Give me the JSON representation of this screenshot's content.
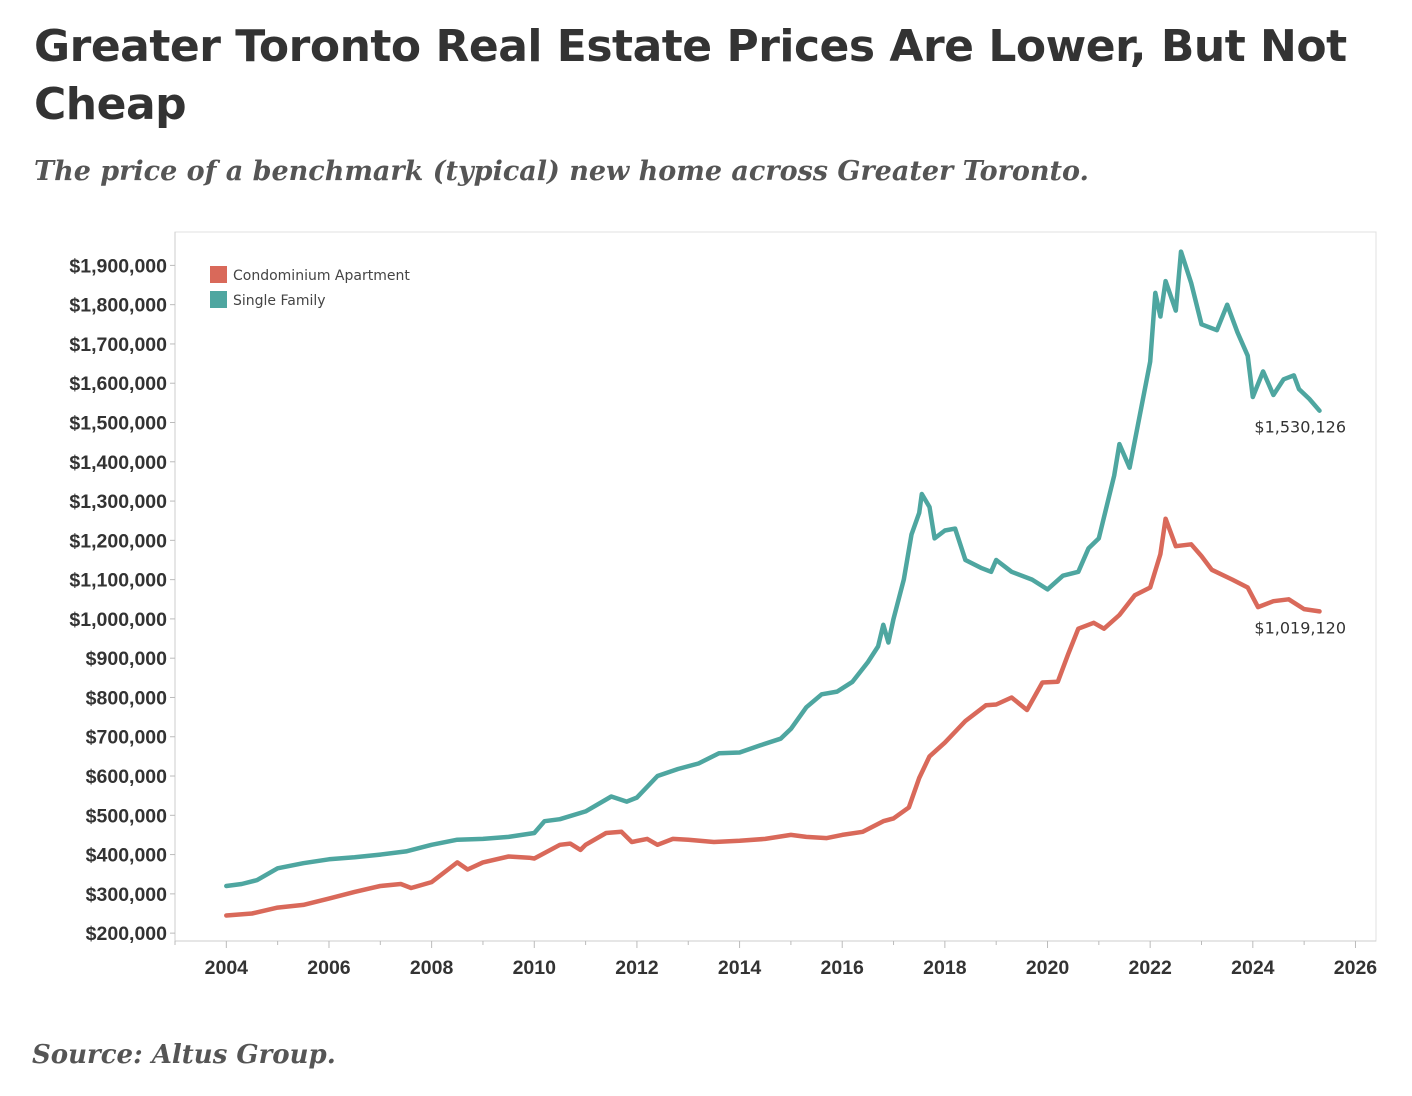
{
  "header": {
    "title": "Greater Toronto Real Estate Prices Are Lower, But Not Cheap",
    "subtitle": "The price of a benchmark (typical) new home across Greater Toronto.",
    "source": "Source: Altus Group."
  },
  "colors": {
    "condo": "#d9695a",
    "single_family": "#4ea6a0",
    "axis": "#cccccc",
    "frame": "#e0e0e0"
  },
  "chart_data": {
    "type": "line",
    "title": "Greater Toronto Real Estate Prices Are Lower, But Not Cheap",
    "subtitle": "The price of a benchmark (typical) new home across Greater Toronto.",
    "xlabel": "",
    "ylabel": "",
    "xlim": [
      2003,
      2026.4
    ],
    "ylim": [
      180000,
      1985000
    ],
    "x_ticks": [
      2004,
      2006,
      2008,
      2010,
      2012,
      2014,
      2016,
      2018,
      2020,
      2022,
      2024,
      2026
    ],
    "y_ticks": [
      200000,
      300000,
      400000,
      500000,
      600000,
      700000,
      800000,
      900000,
      1000000,
      1100000,
      1200000,
      1300000,
      1400000,
      1500000,
      1600000,
      1700000,
      1800000,
      1900000
    ],
    "y_tick_labels": [
      "$200,000",
      "$300,000",
      "$400,000",
      "$500,000",
      "$600,000",
      "$700,000",
      "$800,000",
      "$900,000",
      "$1,000,000",
      "$1,100,000",
      "$1,200,000",
      "$1,300,000",
      "$1,400,000",
      "$1,500,000",
      "$1,600,000",
      "$1,700,000",
      "$1,800,000",
      "$1,900,000"
    ],
    "grid": false,
    "legend_position": "top-left",
    "series": [
      {
        "name": "Condominium Apartment",
        "color": "#d9695a",
        "end_label": "$1,019,120",
        "points": [
          [
            2004.0,
            245000
          ],
          [
            2004.5,
            250000
          ],
          [
            2005.0,
            265000
          ],
          [
            2005.5,
            272000
          ],
          [
            2006.0,
            288000
          ],
          [
            2006.5,
            305000
          ],
          [
            2007.0,
            320000
          ],
          [
            2007.4,
            325000
          ],
          [
            2007.6,
            315000
          ],
          [
            2008.0,
            330000
          ],
          [
            2008.5,
            380000
          ],
          [
            2008.7,
            362000
          ],
          [
            2009.0,
            380000
          ],
          [
            2009.5,
            395000
          ],
          [
            2009.9,
            392000
          ],
          [
            2010.0,
            390000
          ],
          [
            2010.5,
            425000
          ],
          [
            2010.7,
            428000
          ],
          [
            2010.9,
            412000
          ],
          [
            2011.0,
            425000
          ],
          [
            2011.4,
            455000
          ],
          [
            2011.7,
            458000
          ],
          [
            2011.9,
            432000
          ],
          [
            2012.2,
            440000
          ],
          [
            2012.4,
            425000
          ],
          [
            2012.7,
            440000
          ],
          [
            2013.0,
            438000
          ],
          [
            2013.5,
            432000
          ],
          [
            2014.0,
            435000
          ],
          [
            2014.5,
            440000
          ],
          [
            2015.0,
            450000
          ],
          [
            2015.3,
            445000
          ],
          [
            2015.7,
            442000
          ],
          [
            2016.0,
            450000
          ],
          [
            2016.4,
            458000
          ],
          [
            2016.8,
            485000
          ],
          [
            2017.0,
            492000
          ],
          [
            2017.3,
            520000
          ],
          [
            2017.5,
            595000
          ],
          [
            2017.7,
            650000
          ],
          [
            2018.0,
            685000
          ],
          [
            2018.4,
            740000
          ],
          [
            2018.8,
            780000
          ],
          [
            2019.0,
            782000
          ],
          [
            2019.3,
            800000
          ],
          [
            2019.6,
            768000
          ],
          [
            2019.9,
            838000
          ],
          [
            2020.2,
            840000
          ],
          [
            2020.4,
            910000
          ],
          [
            2020.6,
            975000
          ],
          [
            2020.9,
            990000
          ],
          [
            2021.1,
            975000
          ],
          [
            2021.4,
            1010000
          ],
          [
            2021.7,
            1060000
          ],
          [
            2022.0,
            1080000
          ],
          [
            2022.2,
            1165000
          ],
          [
            2022.3,
            1255000
          ],
          [
            2022.5,
            1185000
          ],
          [
            2022.8,
            1190000
          ],
          [
            2023.0,
            1160000
          ],
          [
            2023.2,
            1125000
          ],
          [
            2023.6,
            1100000
          ],
          [
            2023.9,
            1080000
          ],
          [
            2024.1,
            1030000
          ],
          [
            2024.4,
            1045000
          ],
          [
            2024.7,
            1050000
          ],
          [
            2025.0,
            1025000
          ],
          [
            2025.3,
            1019120
          ]
        ]
      },
      {
        "name": "Single Family",
        "color": "#4ea6a0",
        "end_label": "$1,530,126",
        "points": [
          [
            2004.0,
            320000
          ],
          [
            2004.3,
            325000
          ],
          [
            2004.6,
            335000
          ],
          [
            2005.0,
            365000
          ],
          [
            2005.5,
            378000
          ],
          [
            2006.0,
            388000
          ],
          [
            2006.5,
            393000
          ],
          [
            2007.0,
            400000
          ],
          [
            2007.5,
            408000
          ],
          [
            2008.0,
            425000
          ],
          [
            2008.5,
            438000
          ],
          [
            2009.0,
            440000
          ],
          [
            2009.5,
            445000
          ],
          [
            2010.0,
            455000
          ],
          [
            2010.2,
            485000
          ],
          [
            2010.5,
            490000
          ],
          [
            2011.0,
            510000
          ],
          [
            2011.5,
            548000
          ],
          [
            2011.8,
            535000
          ],
          [
            2012.0,
            545000
          ],
          [
            2012.4,
            600000
          ],
          [
            2012.8,
            618000
          ],
          [
            2013.2,
            632000
          ],
          [
            2013.6,
            658000
          ],
          [
            2014.0,
            660000
          ],
          [
            2014.4,
            678000
          ],
          [
            2014.8,
            695000
          ],
          [
            2015.0,
            720000
          ],
          [
            2015.3,
            775000
          ],
          [
            2015.6,
            808000
          ],
          [
            2015.9,
            815000
          ],
          [
            2016.2,
            840000
          ],
          [
            2016.5,
            890000
          ],
          [
            2016.7,
            930000
          ],
          [
            2016.8,
            985000
          ],
          [
            2016.9,
            940000
          ],
          [
            2017.0,
            1000000
          ],
          [
            2017.2,
            1100000
          ],
          [
            2017.35,
            1215000
          ],
          [
            2017.5,
            1270000
          ],
          [
            2017.55,
            1318000
          ],
          [
            2017.7,
            1285000
          ],
          [
            2017.8,
            1205000
          ],
          [
            2018.0,
            1225000
          ],
          [
            2018.2,
            1230000
          ],
          [
            2018.4,
            1150000
          ],
          [
            2018.7,
            1130000
          ],
          [
            2018.9,
            1120000
          ],
          [
            2019.0,
            1150000
          ],
          [
            2019.3,
            1120000
          ],
          [
            2019.7,
            1100000
          ],
          [
            2020.0,
            1075000
          ],
          [
            2020.3,
            1110000
          ],
          [
            2020.6,
            1120000
          ],
          [
            2020.8,
            1180000
          ],
          [
            2021.0,
            1205000
          ],
          [
            2021.3,
            1365000
          ],
          [
            2021.4,
            1445000
          ],
          [
            2021.6,
            1385000
          ],
          [
            2021.8,
            1520000
          ],
          [
            2022.0,
            1655000
          ],
          [
            2022.1,
            1830000
          ],
          [
            2022.2,
            1770000
          ],
          [
            2022.3,
            1860000
          ],
          [
            2022.5,
            1785000
          ],
          [
            2022.6,
            1935000
          ],
          [
            2022.8,
            1855000
          ],
          [
            2023.0,
            1750000
          ],
          [
            2023.3,
            1735000
          ],
          [
            2023.5,
            1800000
          ],
          [
            2023.7,
            1730000
          ],
          [
            2023.9,
            1670000
          ],
          [
            2024.0,
            1565000
          ],
          [
            2024.2,
            1630000
          ],
          [
            2024.4,
            1570000
          ],
          [
            2024.6,
            1610000
          ],
          [
            2024.8,
            1620000
          ],
          [
            2024.9,
            1585000
          ],
          [
            2025.1,
            1560000
          ],
          [
            2025.3,
            1530126
          ]
        ]
      }
    ]
  }
}
